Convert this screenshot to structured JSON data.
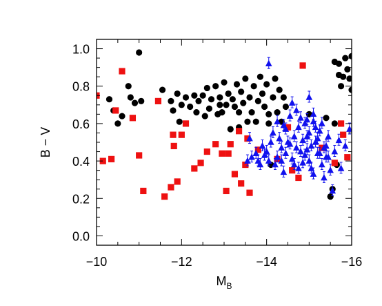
{
  "chart_data": {
    "type": "scatter",
    "xlabel": "M",
    "xlabel_sub": "B",
    "ylabel": "B − V",
    "xlim": [
      -10,
      -16
    ],
    "ylim": [
      -0.05,
      1.05
    ],
    "x_ticks": [
      -10,
      -12,
      -14,
      -16
    ],
    "x_tick_labels": [
      "−10",
      "−12",
      "−14",
      "−16"
    ],
    "y_ticks": [
      0.0,
      0.2,
      0.4,
      0.6,
      0.8,
      1.0
    ],
    "y_tick_labels": [
      "0.0",
      "0.2",
      "0.4",
      "0.6",
      "0.8",
      "1.0"
    ],
    "grid": false,
    "series": [
      {
        "marker": "circle",
        "color": "#000000",
        "points": [
          [
            -10.3,
            0.73
          ],
          [
            -10.4,
            0.67
          ],
          [
            -10.5,
            0.6
          ],
          [
            -10.6,
            0.64
          ],
          [
            -10.75,
            0.8
          ],
          [
            -10.8,
            0.74
          ],
          [
            -10.9,
            0.71
          ],
          [
            -11.0,
            0.98
          ],
          [
            -11.05,
            0.72
          ],
          [
            -11.55,
            0.78
          ],
          [
            -11.75,
            0.72
          ],
          [
            -11.8,
            0.67
          ],
          [
            -11.9,
            0.76
          ],
          [
            -11.95,
            0.61
          ],
          [
            -12.0,
            0.7
          ],
          [
            -12.1,
            0.74
          ],
          [
            -12.2,
            0.69
          ],
          [
            -12.3,
            0.75
          ],
          [
            -12.35,
            0.66
          ],
          [
            -12.4,
            0.72
          ],
          [
            -12.5,
            0.75
          ],
          [
            -12.55,
            0.64
          ],
          [
            -12.6,
            0.79
          ],
          [
            -12.65,
            0.68
          ],
          [
            -12.7,
            0.73
          ],
          [
            -12.8,
            0.8
          ],
          [
            -12.85,
            0.65
          ],
          [
            -12.9,
            0.74
          ],
          [
            -12.95,
            0.66
          ],
          [
            -13.0,
            0.82
          ],
          [
            -13.05,
            0.7
          ],
          [
            -13.1,
            0.76
          ],
          [
            -13.15,
            0.57
          ],
          [
            -13.2,
            0.73
          ],
          [
            -13.25,
            0.69
          ],
          [
            -13.3,
            0.81
          ],
          [
            -13.35,
            0.66
          ],
          [
            -13.4,
            0.77
          ],
          [
            -13.45,
            0.71
          ],
          [
            -13.5,
            0.84
          ],
          [
            -13.55,
            0.61
          ],
          [
            -13.6,
            0.74
          ],
          [
            -13.65,
            0.66
          ],
          [
            -13.7,
            0.8
          ],
          [
            -13.75,
            0.61
          ],
          [
            -13.8,
            0.72
          ],
          [
            -13.85,
            0.85
          ],
          [
            -13.9,
            0.76
          ],
          [
            -13.95,
            0.69
          ],
          [
            -14.0,
            0.81
          ],
          [
            -14.05,
            0.6
          ],
          [
            -14.1,
            0.38
          ],
          [
            -14.15,
            0.74
          ],
          [
            -14.2,
            0.84
          ],
          [
            -14.25,
            0.66
          ],
          [
            -14.3,
            0.78
          ],
          [
            -14.35,
            0.61
          ],
          [
            -14.4,
            0.74
          ],
          [
            -14.45,
            0.69
          ],
          [
            -15.0,
            0.65
          ],
          [
            -15.4,
            0.63
          ],
          [
            -15.5,
            0.21
          ],
          [
            -15.55,
            0.25
          ],
          [
            -15.6,
            0.6
          ],
          [
            -15.65,
            0.38
          ],
          [
            -15.7,
            0.92
          ],
          [
            -15.75,
            0.8
          ],
          [
            -15.8,
            0.85
          ],
          [
            -15.85,
            0.95
          ],
          [
            -15.9,
            0.89
          ],
          [
            -15.95,
            0.84
          ],
          [
            -16.0,
            0.96
          ],
          [
            -16.0,
            0.78
          ],
          [
            -15.6,
            0.93
          ],
          [
            -15.7,
            0.86
          ],
          [
            -14.05,
            0.65
          ],
          [
            -13.35,
            0.58
          ],
          [
            -12.9,
            0.7
          ]
        ]
      },
      {
        "marker": "square",
        "color": "#ee1111",
        "points": [
          [
            -10.0,
            0.75
          ],
          [
            -10.15,
            0.4
          ],
          [
            -10.35,
            0.41
          ],
          [
            -10.45,
            0.67
          ],
          [
            -10.6,
            0.88
          ],
          [
            -10.85,
            0.63
          ],
          [
            -11.0,
            0.43
          ],
          [
            -11.1,
            0.24
          ],
          [
            -11.45,
            0.72
          ],
          [
            -11.6,
            0.21
          ],
          [
            -11.75,
            0.26
          ],
          [
            -11.8,
            0.54
          ],
          [
            -11.82,
            0.48
          ],
          [
            -11.9,
            0.29
          ],
          [
            -12.0,
            0.54
          ],
          [
            -12.1,
            0.6
          ],
          [
            -12.3,
            0.36
          ],
          [
            -12.45,
            0.39
          ],
          [
            -12.6,
            0.45
          ],
          [
            -12.8,
            0.49
          ],
          [
            -12.95,
            0.44
          ],
          [
            -13.05,
            0.24
          ],
          [
            -13.1,
            0.44
          ],
          [
            -13.15,
            0.49
          ],
          [
            -13.25,
            0.33
          ],
          [
            -13.35,
            0.56
          ],
          [
            -13.4,
            0.28
          ],
          [
            -13.5,
            0.38
          ],
          [
            -13.55,
            0.52
          ],
          [
            -13.6,
            0.23
          ],
          [
            -13.8,
            0.46
          ],
          [
            -14.25,
            0.41
          ],
          [
            -14.5,
            0.58
          ],
          [
            -14.6,
            0.35
          ],
          [
            -14.75,
            0.31
          ],
          [
            -14.85,
            0.91
          ],
          [
            -15.3,
            0.47
          ],
          [
            -15.6,
            0.39
          ],
          [
            -15.75,
            0.6
          ],
          [
            -15.8,
            0.54
          ],
          [
            -15.9,
            0.42
          ]
        ]
      },
      {
        "marker": "triangle",
        "color": "#1111ee",
        "error_bars": true,
        "points": [
          [
            -14.05,
            0.92
          ],
          [
            -13.55,
            0.4
          ],
          [
            -13.65,
            0.42
          ],
          [
            -13.75,
            0.44
          ],
          [
            -13.8,
            0.4
          ],
          [
            -13.9,
            0.48
          ],
          [
            -13.95,
            0.43
          ],
          [
            -14.0,
            0.45
          ],
          [
            -14.05,
            0.4
          ],
          [
            -14.1,
            0.5
          ],
          [
            -14.15,
            0.55
          ],
          [
            -14.2,
            0.38
          ],
          [
            -14.25,
            0.42
          ],
          [
            -14.3,
            0.52
          ],
          [
            -14.35,
            0.47
          ],
          [
            -14.4,
            0.59
          ],
          [
            -14.45,
            0.44
          ],
          [
            -14.5,
            0.5
          ],
          [
            -14.55,
            0.64
          ],
          [
            -14.6,
            0.41
          ],
          [
            -14.65,
            0.53
          ],
          [
            -14.7,
            0.47
          ],
          [
            -14.75,
            0.58
          ],
          [
            -14.8,
            0.45
          ],
          [
            -14.85,
            0.51
          ],
          [
            -14.9,
            0.43
          ],
          [
            -14.95,
            0.62
          ],
          [
            -15.0,
            0.4
          ],
          [
            -15.0,
            0.55
          ],
          [
            -15.05,
            0.48
          ],
          [
            -15.1,
            0.33
          ],
          [
            -15.15,
            0.5
          ],
          [
            -15.2,
            0.44
          ],
          [
            -15.25,
            0.56
          ],
          [
            -15.3,
            0.38
          ],
          [
            -15.35,
            0.47
          ],
          [
            -15.4,
            0.42
          ],
          [
            -15.45,
            0.53
          ],
          [
            -15.55,
            0.24
          ],
          [
            -15.6,
            0.45
          ],
          [
            -15.7,
            0.51
          ],
          [
            -15.75,
            0.36
          ],
          [
            -15.85,
            0.48
          ],
          [
            -15.95,
            0.57
          ],
          [
            -14.6,
            0.71
          ],
          [
            -14.7,
            0.67
          ],
          [
            -14.8,
            0.63
          ],
          [
            -14.9,
            0.6
          ],
          [
            -15.0,
            0.74
          ],
          [
            -15.1,
            0.65
          ],
          [
            -15.15,
            0.58
          ],
          [
            -15.2,
            0.52
          ],
          [
            -14.75,
            0.36
          ],
          [
            -14.85,
            0.39
          ],
          [
            -14.95,
            0.46
          ],
          [
            -15.05,
            0.36
          ],
          [
            -15.1,
            0.61
          ],
          [
            -14.55,
            0.49
          ],
          [
            -14.45,
            0.57
          ],
          [
            -14.35,
            0.4
          ],
          [
            -14.65,
            0.38
          ],
          [
            -15.25,
            0.44
          ],
          [
            -15.35,
            0.31
          ],
          [
            -15.45,
            0.42
          ],
          [
            -15.5,
            0.35
          ],
          [
            -14.4,
            0.34
          ],
          [
            -13.6,
            0.52
          ],
          [
            -13.85,
            0.38
          ],
          [
            -14.25,
            0.61
          ],
          [
            -14.95,
            0.53
          ],
          [
            -15.3,
            0.6
          ],
          [
            -15.4,
            0.48
          ]
        ]
      }
    ]
  }
}
